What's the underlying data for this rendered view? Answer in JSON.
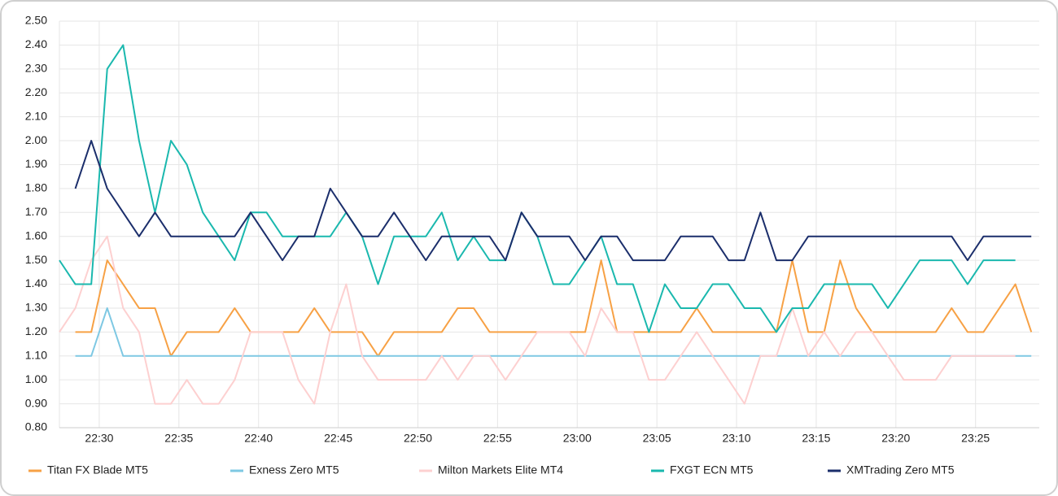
{
  "chart_data": {
    "type": "line",
    "x": [
      1347.5,
      1348.5,
      1349.5,
      1350.5,
      1351.5,
      1352.5,
      1353.5,
      1354.5,
      1355.5,
      1356.5,
      1357.5,
      1358.5,
      1359.5,
      1360.5,
      1361.5,
      1362.5,
      1363.5,
      1364.5,
      1365.5,
      1366.5,
      1367.5,
      1368.5,
      1369.5,
      1370.5,
      1371.5,
      1372.5,
      1373.5,
      1374.5,
      1375.5,
      1376.5,
      1377.5,
      1378.5,
      1379.5,
      1380.5,
      1381.5,
      1382.5,
      1383.5,
      1384.5,
      1385.5,
      1386.5,
      1387.5,
      1388.5,
      1389.5,
      1390.5,
      1391.5,
      1392.5,
      1393.5,
      1394.5,
      1395.5,
      1396.5,
      1397.5,
      1398.5,
      1399.5,
      1400.5,
      1401.5,
      1402.5,
      1403.5,
      1404.5,
      1405.5,
      1406.5,
      1407.5,
      1408.5
    ],
    "xlim": [
      1347.5,
      1409
    ],
    "xticks": [
      {
        "value": 1350,
        "label": "22:30"
      },
      {
        "value": 1355,
        "label": "22:35"
      },
      {
        "value": 1360,
        "label": "22:40"
      },
      {
        "value": 1365,
        "label": "22:45"
      },
      {
        "value": 1370,
        "label": "22:50"
      },
      {
        "value": 1375,
        "label": "22:55"
      },
      {
        "value": 1380,
        "label": "23:00"
      },
      {
        "value": 1385,
        "label": "23:05"
      },
      {
        "value": 1390,
        "label": "23:10"
      },
      {
        "value": 1395,
        "label": "23:15"
      },
      {
        "value": 1400,
        "label": "23:20"
      },
      {
        "value": 1405,
        "label": "23:25"
      }
    ],
    "ylim": [
      0.8,
      2.5
    ],
    "yticks": [
      {
        "value": 0.8,
        "label": "0.80"
      },
      {
        "value": 0.9,
        "label": "0.90"
      },
      {
        "value": 1.0,
        "label": "1.00"
      },
      {
        "value": 1.1,
        "label": "1.10"
      },
      {
        "value": 1.2,
        "label": "1.20"
      },
      {
        "value": 1.3,
        "label": "1.30"
      },
      {
        "value": 1.4,
        "label": "1.40"
      },
      {
        "value": 1.5,
        "label": "1.50"
      },
      {
        "value": 1.6,
        "label": "1.60"
      },
      {
        "value": 1.7,
        "label": "1.70"
      },
      {
        "value": 1.8,
        "label": "1.80"
      },
      {
        "value": 1.9,
        "label": "1.90"
      },
      {
        "value": 2.0,
        "label": "2.00"
      },
      {
        "value": 2.1,
        "label": "2.10"
      },
      {
        "value": 2.2,
        "label": "2.20"
      },
      {
        "value": 2.3,
        "label": "2.30"
      },
      {
        "value": 2.4,
        "label": "2.40"
      },
      {
        "value": 2.5,
        "label": "2.50"
      }
    ],
    "grid": true,
    "legend": "bottom",
    "series": [
      {
        "name": "Titan FX Blade MT5",
        "color": "#f7a145",
        "values": [
          null,
          1.2,
          1.2,
          1.5,
          1.4,
          1.3,
          1.3,
          1.1,
          1.2,
          1.2,
          1.2,
          1.3,
          1.2,
          1.2,
          1.2,
          1.2,
          1.3,
          1.2,
          1.2,
          1.2,
          1.1,
          1.2,
          1.2,
          1.2,
          1.2,
          1.3,
          1.3,
          1.2,
          1.2,
          1.2,
          1.2,
          1.2,
          1.2,
          1.2,
          1.5,
          1.2,
          1.2,
          1.2,
          1.2,
          1.2,
          1.3,
          1.2,
          1.2,
          1.2,
          1.2,
          1.2,
          1.5,
          1.2,
          1.2,
          1.5,
          1.3,
          1.2,
          1.2,
          1.2,
          1.2,
          1.2,
          1.3,
          1.2,
          1.2,
          1.3,
          1.4,
          1.2
        ]
      },
      {
        "name": "Exness Zero MT5",
        "color": "#7ec8e3",
        "values": [
          null,
          1.1,
          1.1,
          1.3,
          1.1,
          1.1,
          1.1,
          1.1,
          1.1,
          1.1,
          1.1,
          1.1,
          1.1,
          1.1,
          1.1,
          1.1,
          1.1,
          1.1,
          1.1,
          1.1,
          1.1,
          1.1,
          1.1,
          1.1,
          1.1,
          1.1,
          1.1,
          1.1,
          1.1,
          1.1,
          1.1,
          1.1,
          1.1,
          1.1,
          1.1,
          1.1,
          1.1,
          1.1,
          1.1,
          1.1,
          1.1,
          1.1,
          1.1,
          1.1,
          1.1,
          1.1,
          1.1,
          1.1,
          1.1,
          1.1,
          1.1,
          1.1,
          1.1,
          1.1,
          1.1,
          1.1,
          1.1,
          1.1,
          1.1,
          1.1,
          1.1,
          1.1
        ]
      },
      {
        "name": "Milton Markets Elite MT4",
        "color": "#fdd0d0",
        "values": [
          1.2,
          1.3,
          1.5,
          1.6,
          1.3,
          1.2,
          0.9,
          0.9,
          1.0,
          0.9,
          0.9,
          1.0,
          1.2,
          1.2,
          1.2,
          1.0,
          0.9,
          1.2,
          1.4,
          1.1,
          1.0,
          1.0,
          1.0,
          1.0,
          1.1,
          1.0,
          1.1,
          1.1,
          1.0,
          1.1,
          1.2,
          1.2,
          1.2,
          1.1,
          1.3,
          1.2,
          1.2,
          1.0,
          1.0,
          1.1,
          1.2,
          1.1,
          1.0,
          0.9,
          1.1,
          1.1,
          1.3,
          1.1,
          1.2,
          1.1,
          1.2,
          1.2,
          1.1,
          1.0,
          1.0,
          1.0,
          1.1,
          1.1,
          1.1,
          1.1,
          1.1,
          null
        ]
      },
      {
        "name": "FXGT ECN MT5",
        "color": "#1ab8ae",
        "values": [
          1.5,
          1.4,
          1.4,
          2.3,
          2.4,
          2.0,
          1.7,
          2.0,
          1.9,
          1.7,
          1.6,
          1.5,
          1.7,
          1.7,
          1.6,
          1.6,
          1.6,
          1.6,
          1.7,
          1.6,
          1.4,
          1.6,
          1.6,
          1.6,
          1.7,
          1.5,
          1.6,
          1.5,
          1.5,
          1.7,
          1.6,
          1.4,
          1.4,
          1.5,
          1.6,
          1.4,
          1.4,
          1.2,
          1.4,
          1.3,
          1.3,
          1.4,
          1.4,
          1.3,
          1.3,
          1.2,
          1.3,
          1.3,
          1.4,
          1.4,
          1.4,
          1.4,
          1.3,
          1.4,
          1.5,
          1.5,
          1.5,
          1.4,
          1.5,
          1.5,
          1.5,
          null
        ]
      },
      {
        "name": "XMTrading Zero MT5",
        "color": "#1b2e6b",
        "values": [
          null,
          1.8,
          2.0,
          1.8,
          1.7,
          1.6,
          1.7,
          1.6,
          1.6,
          1.6,
          1.6,
          1.6,
          1.7,
          1.6,
          1.5,
          1.6,
          1.6,
          1.8,
          1.7,
          1.6,
          1.6,
          1.7,
          1.6,
          1.5,
          1.6,
          1.6,
          1.6,
          1.6,
          1.5,
          1.7,
          1.6,
          1.6,
          1.6,
          1.5,
          1.6,
          1.6,
          1.5,
          1.5,
          1.5,
          1.6,
          1.6,
          1.6,
          1.5,
          1.5,
          1.7,
          1.5,
          1.5,
          1.6,
          1.6,
          1.6,
          1.6,
          1.6,
          1.6,
          1.6,
          1.6,
          1.6,
          1.6,
          1.5,
          1.6,
          1.6,
          1.6,
          1.6
        ]
      }
    ]
  }
}
